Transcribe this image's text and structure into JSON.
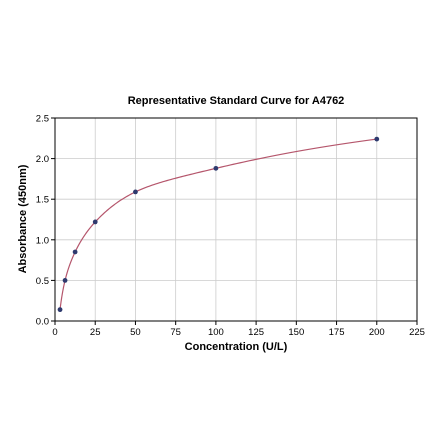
{
  "chart_data": {
    "type": "scatter",
    "title": "Representative Standard Curve for A4762",
    "xlabel": "Concentration (U/L)",
    "ylabel": "Absorbance (450nm)",
    "xlim": [
      0,
      225
    ],
    "ylim": [
      0,
      2.5
    ],
    "x_ticks": [
      0,
      25,
      50,
      75,
      100,
      125,
      150,
      175,
      200,
      225
    ],
    "y_ticks": [
      0.0,
      0.5,
      1.0,
      1.5,
      2.0,
      2.5
    ],
    "x_tick_labels": [
      "0",
      "25",
      "50",
      "75",
      "100",
      "125",
      "150",
      "175",
      "200",
      "225"
    ],
    "y_tick_labels": [
      "0.0",
      "0.5",
      "1.0",
      "1.5",
      "2.0",
      "2.5"
    ],
    "grid": true,
    "points": [
      {
        "x": 3.125,
        "y": 0.14
      },
      {
        "x": 6.25,
        "y": 0.5
      },
      {
        "x": 12.5,
        "y": 0.85
      },
      {
        "x": 25,
        "y": 1.22
      },
      {
        "x": 50,
        "y": 1.59
      },
      {
        "x": 100,
        "y": 1.88
      },
      {
        "x": 200,
        "y": 2.24
      }
    ],
    "fit_curve": true,
    "colors": {
      "points": "#2e3a6e",
      "curve": "#b5566c",
      "grid": "#cccccc",
      "axis": "#000000"
    }
  }
}
